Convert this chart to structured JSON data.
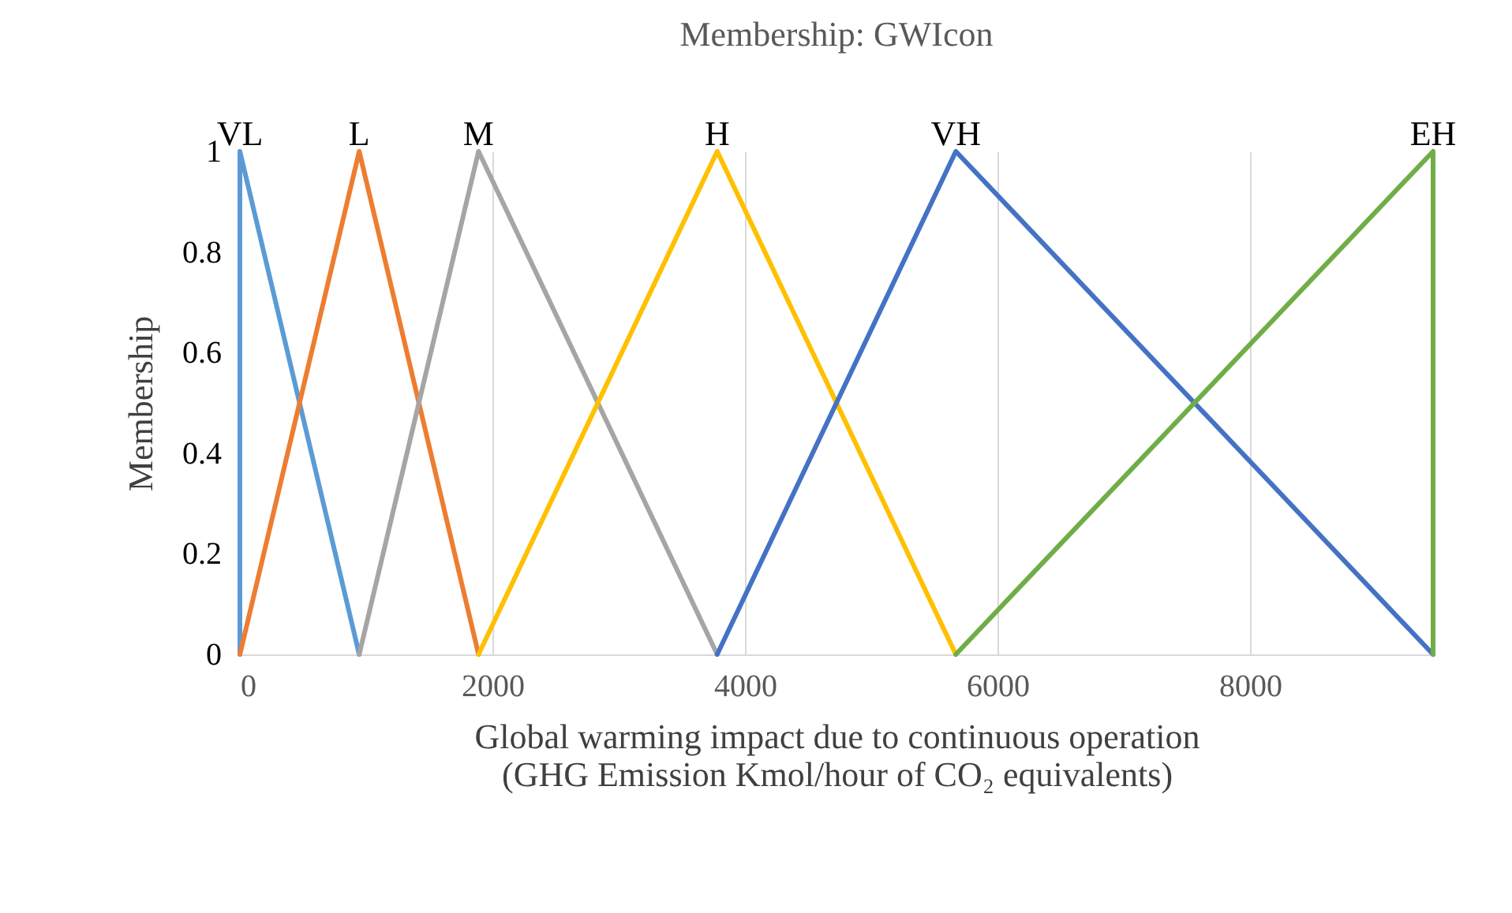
{
  "chart_data": {
    "type": "line",
    "title": "Membership: GWIcon",
    "xlabel": "Global warming impact due to continuous operation\n(GHG Emission Kmol/hour of CO₂ equivalents)",
    "ylabel": "Membership",
    "xlim": [
      0,
      9450
    ],
    "xticks": [
      0,
      2000,
      4000,
      6000,
      8000
    ],
    "ylim": [
      0,
      1
    ],
    "yticks": [
      0,
      0.2,
      0.4,
      0.6,
      0.8,
      1
    ],
    "grid": "x",
    "legend": false,
    "marker": "none",
    "line_style": "solid",
    "series": [
      {
        "name": "VL",
        "color": "#5b9bd5",
        "x": [
          0,
          0,
          945
        ],
        "values": [
          0,
          1,
          0
        ]
      },
      {
        "name": "L",
        "color": "#ed7d31",
        "x": [
          0,
          945,
          1890
        ],
        "values": [
          0,
          1,
          0
        ]
      },
      {
        "name": "M",
        "color": "#a5a5a5",
        "x": [
          945,
          1890,
          3780
        ],
        "values": [
          0,
          1,
          0
        ]
      },
      {
        "name": "H",
        "color": "#ffc000",
        "x": [
          1890,
          3780,
          5670
        ],
        "values": [
          0,
          1,
          0
        ]
      },
      {
        "name": "VH",
        "color": "#4472c4",
        "x": [
          3780,
          5670,
          9450
        ],
        "values": [
          0,
          1,
          0
        ]
      },
      {
        "name": "EH",
        "color": "#70ad47",
        "x": [
          5670,
          9450,
          9450
        ],
        "values": [
          0,
          1,
          0
        ]
      }
    ]
  }
}
